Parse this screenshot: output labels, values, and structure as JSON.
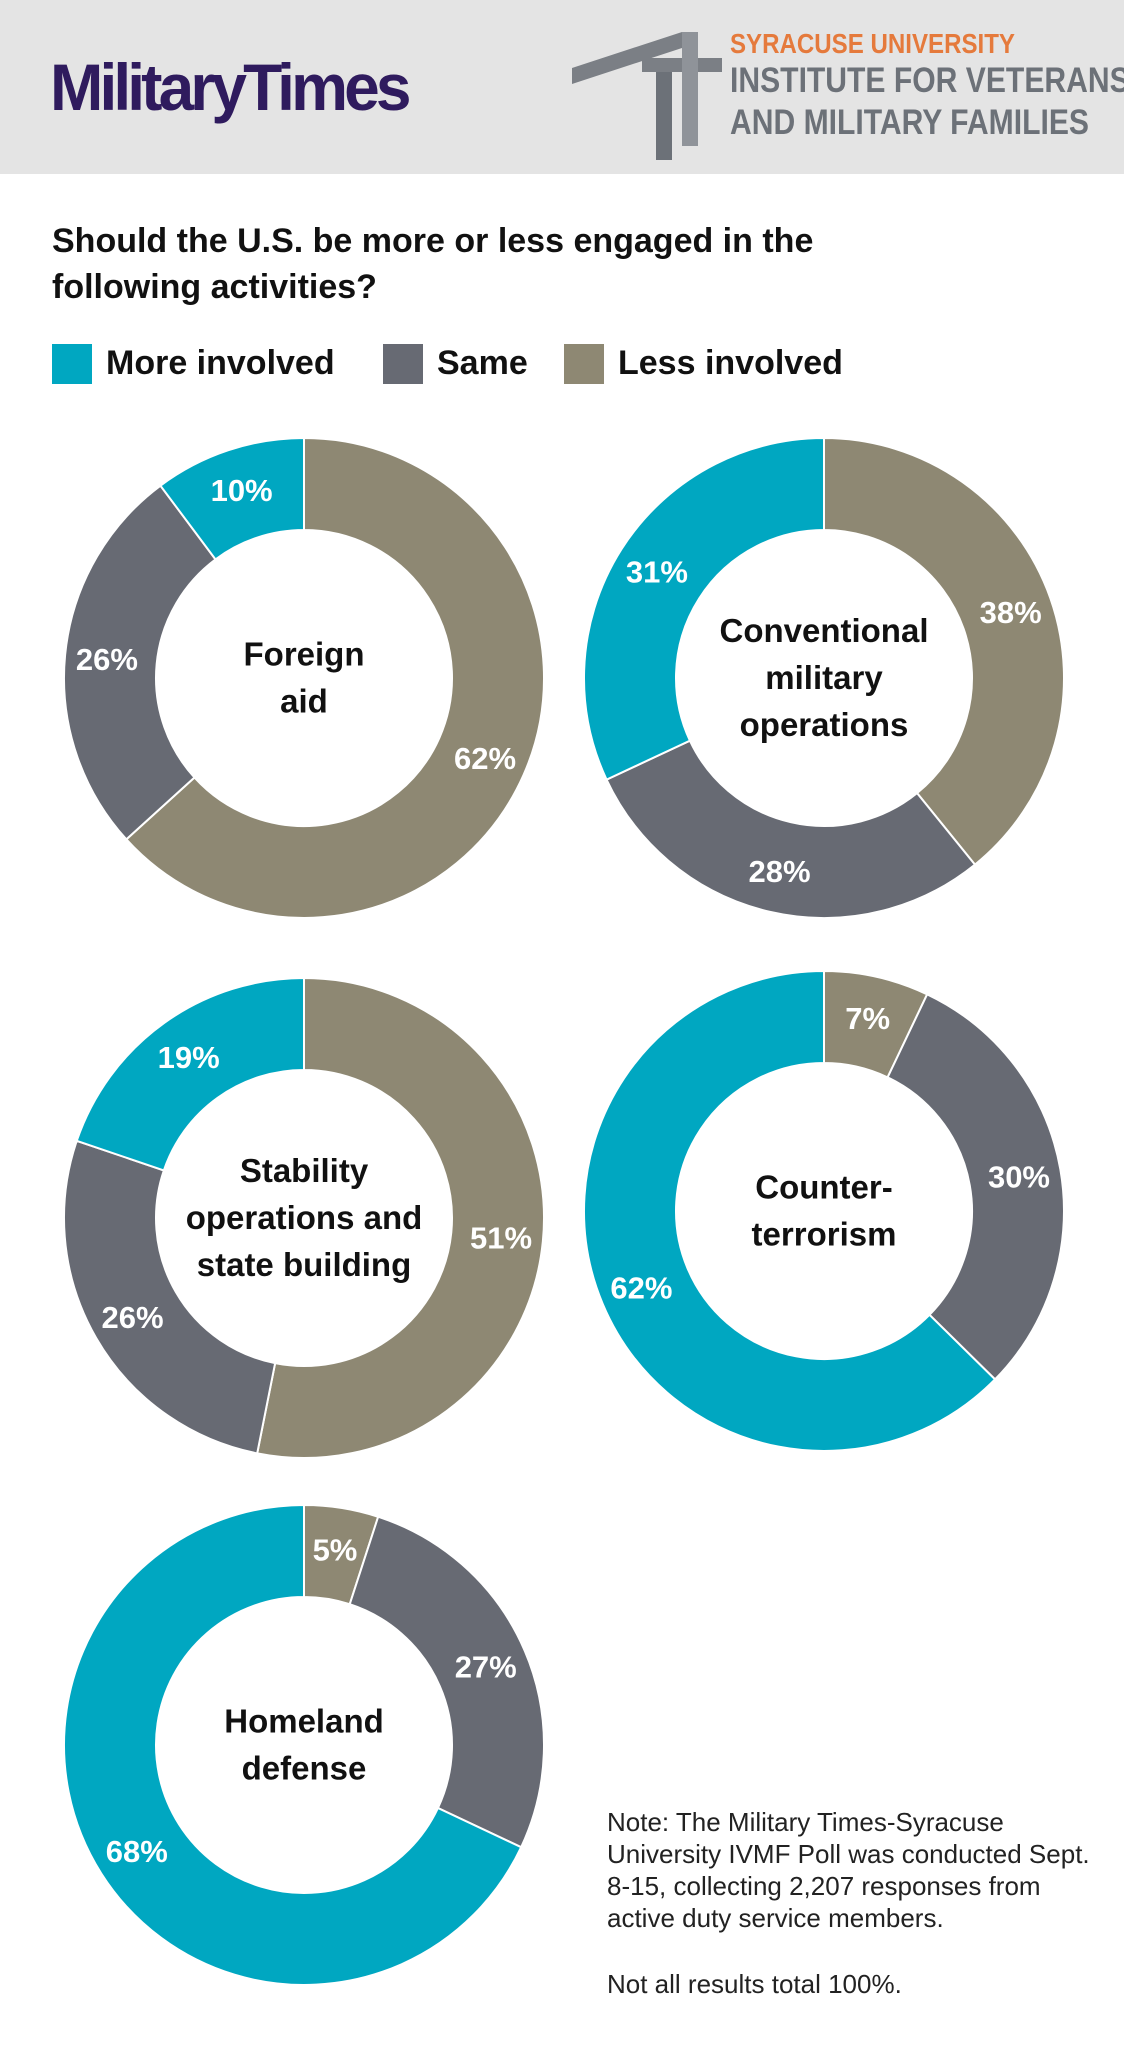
{
  "header": {
    "logo_text": "MilitaryTimes",
    "partner_line1": "SYRACUSE UNIVERSITY",
    "partner_line2": "INSTITUTE FOR VETERANS",
    "partner_line3": "AND MILITARY FAMILIES"
  },
  "question": "Should the U.S. be more or less engaged in the following activities?",
  "legend": [
    {
      "label": "More involved",
      "color": "#00a7c1"
    },
    {
      "label": "Same",
      "color": "#676a73"
    },
    {
      "label": "Less involved",
      "color": "#8e8873"
    }
  ],
  "note": {
    "text": "Note: The Military Times-Syracuse University IVMF Poll was conducted Sept. 8-15, collecting 2,207 responses from active duty service members.",
    "footnote": "Not all results total 100%."
  },
  "chart_data": [
    {
      "type": "pie",
      "donut": true,
      "title_lines": [
        "Foreign",
        "aid"
      ],
      "categories": [
        "More involved",
        "Same",
        "Less involved"
      ],
      "values": [
        10,
        26,
        62
      ],
      "labels": [
        "10%",
        "26%",
        "62%"
      ]
    },
    {
      "type": "pie",
      "donut": true,
      "title_lines": [
        "Conventional",
        "military",
        "operations"
      ],
      "categories": [
        "More involved",
        "Same",
        "Less involved"
      ],
      "values": [
        31,
        28,
        38
      ],
      "labels": [
        "31%",
        "28%",
        "38%"
      ]
    },
    {
      "type": "pie",
      "donut": true,
      "title_lines": [
        "Stability",
        "operations and",
        "state building"
      ],
      "categories": [
        "More involved",
        "Same",
        "Less involved"
      ],
      "values": [
        19,
        26,
        51
      ],
      "labels": [
        "19%",
        "26%",
        "51%"
      ]
    },
    {
      "type": "pie",
      "donut": true,
      "title_lines": [
        "Counter-",
        "terrorism"
      ],
      "categories": [
        "More involved",
        "Same",
        "Less involved"
      ],
      "values": [
        62,
        30,
        7
      ],
      "labels": [
        "62%",
        "30%",
        "7%"
      ]
    },
    {
      "type": "pie",
      "donut": true,
      "title_lines": [
        "Homeland",
        "defense"
      ],
      "categories": [
        "More involved",
        "Same",
        "Less involved"
      ],
      "values": [
        68,
        27,
        5
      ],
      "labels": [
        "68%",
        "27%",
        "5%"
      ]
    }
  ]
}
